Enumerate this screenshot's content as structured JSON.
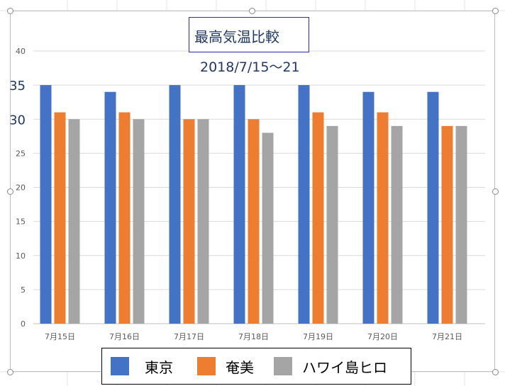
{
  "chart_data": {
    "type": "bar",
    "title": "最高気温比較",
    "subtitle": "2018/7/15〜21",
    "categories": [
      "7月15日",
      "7月16日",
      "7月17日",
      "7月18日",
      "7月19日",
      "7月20日",
      "7月21日"
    ],
    "series": [
      {
        "name": "東京",
        "color": "#4472c4",
        "values": [
          35,
          34,
          35,
          35,
          35,
          34,
          34
        ]
      },
      {
        "name": "奄美",
        "color": "#ed7d31",
        "values": [
          31,
          31,
          30,
          30,
          31,
          31,
          29
        ]
      },
      {
        "name": "ハワイ島ヒロ",
        "color": "#a5a5a5",
        "values": [
          30,
          30,
          30,
          28,
          29,
          29,
          29
        ]
      }
    ],
    "yticks": [
      0,
      5,
      10,
      15,
      20,
      25,
      30,
      35,
      40
    ],
    "ylim": [
      0,
      40
    ],
    "grid": true,
    "legend_position": "bottom"
  }
}
